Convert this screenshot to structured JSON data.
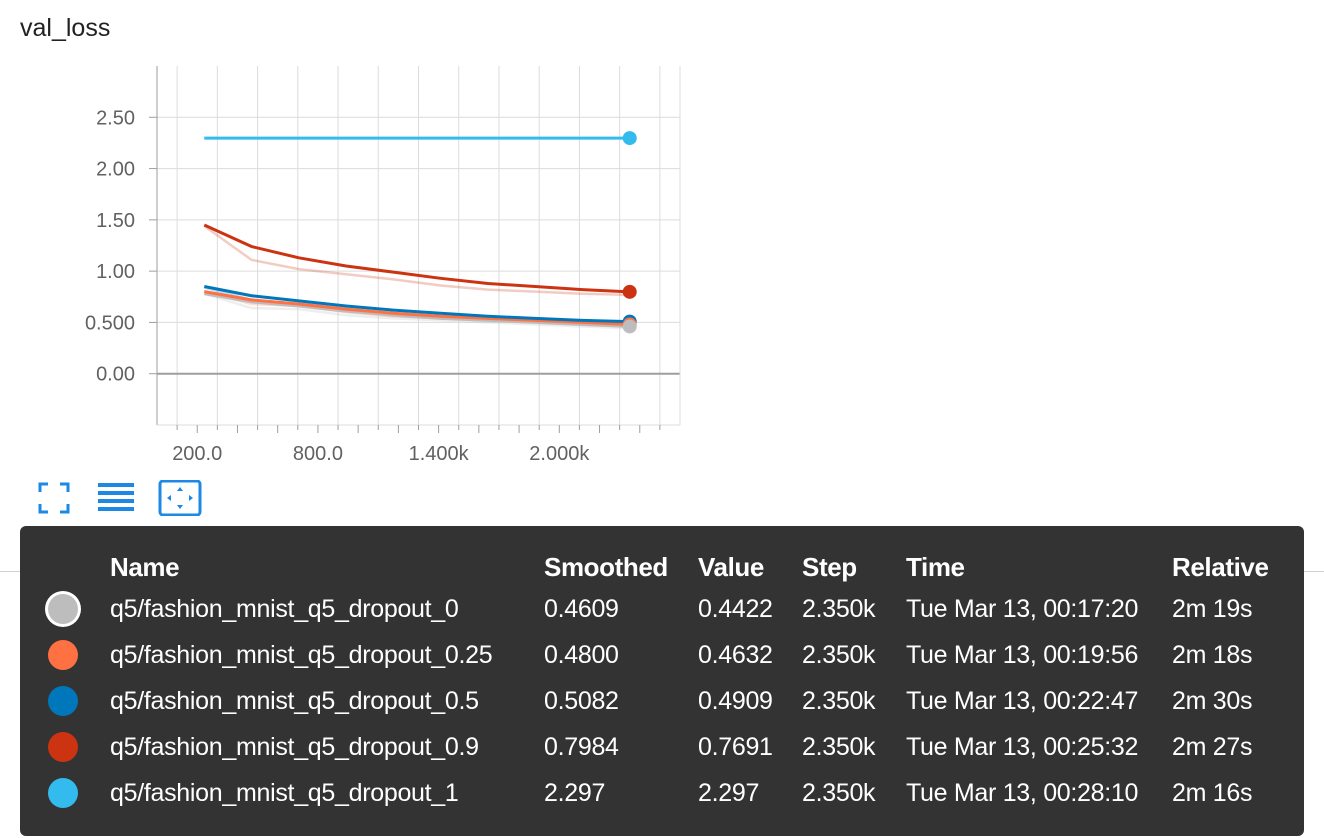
{
  "card": {
    "title": "val_loss"
  },
  "toolbar": [
    {
      "name": "fullscreen-toggle-button",
      "icon": "fullscreen-icon"
    },
    {
      "name": "toggle-log-scale-button",
      "icon": "list-lines-icon"
    },
    {
      "name": "fit-domain-button",
      "icon": "fit-to-data-icon"
    }
  ],
  "chart_data": {
    "type": "line",
    "xlim": [
      0,
      2600
    ],
    "ylim": [
      -0.5,
      3.0
    ],
    "yticks": [
      0,
      0.5,
      1.0,
      1.5,
      2.0,
      2.5
    ],
    "ytick_labels": [
      "0.00",
      "0.500",
      "1.00",
      "1.50",
      "2.00",
      "2.50"
    ],
    "xticks": [
      200,
      800,
      1400,
      2000
    ],
    "xtick_labels": [
      "200.0",
      "800.0",
      "1.400k",
      "2.000k"
    ],
    "grid": true,
    "series": [
      {
        "name": "q5/fashion_mnist_q5_dropout_0",
        "color": "#bdbdbd",
        "x": [
          235,
          470,
          705,
          940,
          1175,
          1410,
          1645,
          1880,
          2115,
          2350
        ],
        "raw": [
          0.78,
          0.64,
          0.63,
          0.57,
          0.54,
          0.52,
          0.5,
          0.48,
          0.46,
          0.4422
        ],
        "smoothed": [
          0.78,
          0.7,
          0.66,
          0.61,
          0.57,
          0.54,
          0.52,
          0.5,
          0.48,
          0.4609
        ]
      },
      {
        "name": "q5/fashion_mnist_q5_dropout_0.25",
        "color": "#ff7043",
        "x": [
          235,
          470,
          705,
          940,
          1175,
          1410,
          1645,
          1880,
          2115,
          2350
        ],
        "raw": [
          0.8,
          0.68,
          0.66,
          0.6,
          0.56,
          0.54,
          0.52,
          0.5,
          0.48,
          0.4632
        ],
        "smoothed": [
          0.8,
          0.72,
          0.68,
          0.63,
          0.59,
          0.56,
          0.54,
          0.52,
          0.5,
          0.48
        ]
      },
      {
        "name": "q5/fashion_mnist_q5_dropout_0.5",
        "color": "#0077bb",
        "x": [
          235,
          470,
          705,
          940,
          1175,
          1410,
          1645,
          1880,
          2115,
          2350
        ],
        "raw": [
          0.84,
          0.72,
          0.68,
          0.63,
          0.59,
          0.56,
          0.54,
          0.52,
          0.5,
          0.4909
        ],
        "smoothed": [
          0.85,
          0.76,
          0.71,
          0.66,
          0.62,
          0.59,
          0.56,
          0.54,
          0.52,
          0.5082
        ]
      },
      {
        "name": "q5/fashion_mnist_q5_dropout_0.9",
        "color": "#cc3311",
        "x": [
          235,
          470,
          705,
          940,
          1175,
          1410,
          1645,
          1880,
          2115,
          2350
        ],
        "raw": [
          1.44,
          1.11,
          1.02,
          0.97,
          0.92,
          0.86,
          0.82,
          0.8,
          0.78,
          0.7691
        ],
        "smoothed": [
          1.45,
          1.24,
          1.13,
          1.05,
          0.99,
          0.93,
          0.88,
          0.85,
          0.82,
          0.7984
        ]
      },
      {
        "name": "q5/fashion_mnist_q5_dropout_1",
        "color": "#33bbee",
        "x": [
          235,
          470,
          705,
          940,
          1175,
          1410,
          1645,
          1880,
          2115,
          2350
        ],
        "raw": [
          2.297,
          2.297,
          2.297,
          2.297,
          2.297,
          2.297,
          2.297,
          2.297,
          2.297,
          2.297
        ],
        "smoothed": [
          2.297,
          2.297,
          2.297,
          2.297,
          2.297,
          2.297,
          2.297,
          2.297,
          2.297,
          2.297
        ]
      }
    ]
  },
  "tooltip": {
    "headers": {
      "name": "Name",
      "smoothed": "Smoothed",
      "value": "Value",
      "step": "Step",
      "time": "Time",
      "relative": "Relative"
    },
    "rows": [
      {
        "color": "#bdbdbd",
        "name": "q5/fashion_mnist_q5_dropout_0",
        "smoothed": "0.4609",
        "value": "0.4422",
        "step": "2.350k",
        "time": "Tue Mar 13, 00:17:20",
        "relative": "2m 19s"
      },
      {
        "color": "#ff7043",
        "name": "q5/fashion_mnist_q5_dropout_0.25",
        "smoothed": "0.4800",
        "value": "0.4632",
        "step": "2.350k",
        "time": "Tue Mar 13, 00:19:56",
        "relative": "2m 18s"
      },
      {
        "color": "#0077bb",
        "name": "q5/fashion_mnist_q5_dropout_0.5",
        "smoothed": "0.5082",
        "value": "0.4909",
        "step": "2.350k",
        "time": "Tue Mar 13, 00:22:47",
        "relative": "2m 30s"
      },
      {
        "color": "#cc3311",
        "name": "q5/fashion_mnist_q5_dropout_0.9",
        "smoothed": "0.7984",
        "value": "0.7691",
        "step": "2.350k",
        "time": "Tue Mar 13, 00:25:32",
        "relative": "2m 27s"
      },
      {
        "color": "#33bbee",
        "name": "q5/fashion_mnist_q5_dropout_1",
        "smoothed": "2.297",
        "value": "2.297",
        "step": "2.350k",
        "time": "Tue Mar 13, 00:28:10",
        "relative": "2m 16s"
      }
    ]
  }
}
